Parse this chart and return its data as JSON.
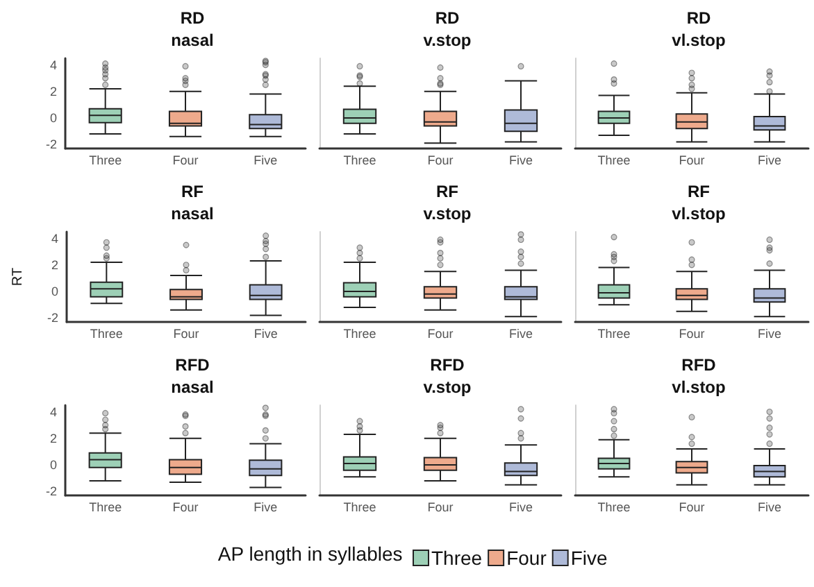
{
  "chart_data": [
    {
      "type": "box",
      "title": "RD",
      "subtitle": "nasal",
      "categories": [
        "Three",
        "Four",
        "Five"
      ],
      "ylim": [
        -2.3,
        4.5
      ],
      "yticks": [
        -2,
        0,
        2,
        4
      ],
      "grid": false,
      "legend": false,
      "series": [
        {
          "color": "#9dd0b6",
          "boxes": [
            {
              "low": -1.2,
              "q1": -0.35,
              "median": 0.2,
              "q3": 0.7,
              "high": 2.2,
              "outliers": [
                2.5,
                3.0,
                3.3,
                3.6,
                3.8,
                4.1
              ]
            },
            null,
            null
          ]
        },
        {
          "color": "#eeaa8c",
          "boxes": [
            null,
            {
              "low": -1.4,
              "q1": -0.6,
              "median": -0.4,
              "q3": 0.5,
              "high": 2.0,
              "outliers": [
                2.5,
                2.8,
                3.0,
                3.9
              ]
            },
            null
          ]
        },
        {
          "color": "#aebad8",
          "boxes": [
            null,
            null,
            {
              "low": -1.4,
              "q1": -0.8,
              "median": -0.5,
              "q3": 0.25,
              "high": 1.8,
              "outliers": [
                2.5,
                2.9,
                3.2,
                3.3,
                4.0,
                4.2,
                4.3
              ]
            }
          ]
        }
      ]
    },
    {
      "type": "box",
      "title": "RD",
      "subtitle": "v.stop",
      "categories": [
        "Three",
        "Four",
        "Five"
      ],
      "ylim": [
        -2.3,
        4.5
      ],
      "yticks": [
        -2,
        0,
        2,
        4
      ],
      "tick_labels": "x",
      "grid": false,
      "legend": false,
      "series": [
        {
          "color": "#9dd0b6",
          "boxes": [
            {
              "low": -1.2,
              "q1": -0.4,
              "median": 0.0,
              "q3": 0.65,
              "high": 2.4,
              "outliers": [
                2.6,
                3.1,
                3.2,
                3.9
              ]
            },
            null,
            null
          ]
        },
        {
          "color": "#eeaa8c",
          "boxes": [
            null,
            {
              "low": -1.9,
              "q1": -0.6,
              "median": -0.3,
              "q3": 0.5,
              "high": 2.0,
              "outliers": [
                2.5,
                2.6,
                3.0,
                3.8
              ]
            },
            null
          ]
        },
        {
          "color": "#aebad8",
          "boxes": [
            null,
            null,
            {
              "low": -1.8,
              "q1": -1.0,
              "median": -0.4,
              "q3": 0.6,
              "high": 2.8,
              "outliers": [
                3.9
              ]
            }
          ]
        }
      ]
    },
    {
      "type": "box",
      "title": "RD",
      "subtitle": "vl.stop",
      "categories": [
        "Three",
        "Four",
        "Five"
      ],
      "ylim": [
        -2.3,
        4.5
      ],
      "yticks": [
        -2,
        0,
        2,
        4
      ],
      "tick_labels": "x",
      "grid": false,
      "legend": false,
      "series": [
        {
          "color": "#9dd0b6",
          "boxes": [
            {
              "low": -1.3,
              "q1": -0.4,
              "median": 0.0,
              "q3": 0.5,
              "high": 1.7,
              "outliers": [
                2.6,
                2.9,
                4.1
              ]
            },
            null,
            null
          ]
        },
        {
          "color": "#eeaa8c",
          "boxes": [
            null,
            {
              "low": -1.8,
              "q1": -0.8,
              "median": -0.3,
              "q3": 0.3,
              "high": 1.9,
              "outliers": [
                2.2,
                2.5,
                3.0,
                3.4
              ]
            },
            null
          ]
        },
        {
          "color": "#aebad8",
          "boxes": [
            null,
            null,
            {
              "low": -1.8,
              "q1": -0.9,
              "median": -0.6,
              "q3": 0.1,
              "high": 1.8,
              "outliers": [
                2.0,
                2.7,
                3.2,
                3.5
              ]
            }
          ]
        }
      ]
    },
    {
      "type": "box",
      "title": "RF",
      "subtitle": "nasal",
      "ylabel": "RT",
      "categories": [
        "Three",
        "Four",
        "Five"
      ],
      "ylim": [
        -2.3,
        4.5
      ],
      "yticks": [
        -2,
        0,
        2,
        4
      ],
      "grid": false,
      "legend": false,
      "series": [
        {
          "color": "#9dd0b6",
          "boxes": [
            {
              "low": -0.9,
              "q1": -0.4,
              "median": 0.2,
              "q3": 0.7,
              "high": 2.2,
              "outliers": [
                2.5,
                2.7,
                3.3,
                3.7
              ]
            },
            null,
            null
          ]
        },
        {
          "color": "#eeaa8c",
          "boxes": [
            null,
            {
              "low": -1.4,
              "q1": -0.6,
              "median": -0.4,
              "q3": 0.15,
              "high": 1.2,
              "outliers": [
                1.6,
                2.0,
                3.5
              ]
            },
            null
          ]
        },
        {
          "color": "#aebad8",
          "boxes": [
            null,
            null,
            {
              "low": -1.8,
              "q1": -0.6,
              "median": -0.3,
              "q3": 0.5,
              "high": 2.3,
              "outliers": [
                2.6,
                3.2,
                3.6,
                3.8,
                4.2
              ]
            }
          ]
        }
      ]
    },
    {
      "type": "box",
      "title": "RF",
      "subtitle": "v.stop",
      "categories": [
        "Three",
        "Four",
        "Five"
      ],
      "ylim": [
        -2.3,
        4.5
      ],
      "yticks": [
        -2,
        0,
        2,
        4
      ],
      "tick_labels": "x",
      "grid": false,
      "legend": false,
      "series": [
        {
          "color": "#9dd0b6",
          "boxes": [
            {
              "low": -1.2,
              "q1": -0.4,
              "median": 0.0,
              "q3": 0.65,
              "high": 2.2,
              "outliers": [
                2.5,
                2.9,
                3.3
              ]
            },
            null,
            null
          ]
        },
        {
          "color": "#eeaa8c",
          "boxes": [
            null,
            {
              "low": -1.4,
              "q1": -0.5,
              "median": -0.2,
              "q3": 0.35,
              "high": 1.5,
              "outliers": [
                2.0,
                2.5,
                2.9,
                3.7,
                3.9
              ]
            },
            null
          ]
        },
        {
          "color": "#aebad8",
          "boxes": [
            null,
            null,
            {
              "low": -1.9,
              "q1": -0.6,
              "median": -0.4,
              "q3": 0.35,
              "high": 1.6,
              "outliers": [
                2.1,
                2.6,
                3.0,
                3.9,
                4.3
              ]
            }
          ]
        }
      ]
    },
    {
      "type": "box",
      "title": "RF",
      "subtitle": "vl.stop",
      "categories": [
        "Three",
        "Four",
        "Five"
      ],
      "ylim": [
        -2.3,
        4.5
      ],
      "yticks": [
        -2,
        0,
        2,
        4
      ],
      "tick_labels": "x",
      "grid": false,
      "legend": false,
      "series": [
        {
          "color": "#9dd0b6",
          "boxes": [
            {
              "low": -1.0,
              "q1": -0.5,
              "median": -0.1,
              "q3": 0.5,
              "high": 1.8,
              "outliers": [
                2.3,
                2.6,
                2.8,
                4.1
              ]
            },
            null,
            null
          ]
        },
        {
          "color": "#eeaa8c",
          "boxes": [
            null,
            {
              "low": -1.5,
              "q1": -0.6,
              "median": -0.3,
              "q3": 0.2,
              "high": 1.5,
              "outliers": [
                2.0,
                2.4,
                3.7
              ]
            },
            null
          ]
        },
        {
          "color": "#aebad8",
          "boxes": [
            null,
            null,
            {
              "low": -1.9,
              "q1": -0.8,
              "median": -0.5,
              "q3": 0.2,
              "high": 1.6,
              "outliers": [
                2.1,
                3.1,
                3.3,
                3.9
              ]
            }
          ]
        }
      ]
    },
    {
      "type": "box",
      "title": "RFD",
      "subtitle": "nasal",
      "categories": [
        "Three",
        "Four",
        "Five"
      ],
      "ylim": [
        -2.3,
        4.5
      ],
      "yticks": [
        -2,
        0,
        2,
        4
      ],
      "grid": false,
      "legend": false,
      "series": [
        {
          "color": "#9dd0b6",
          "boxes": [
            {
              "low": -1.2,
              "q1": -0.2,
              "median": 0.4,
              "q3": 0.9,
              "high": 2.4,
              "outliers": [
                2.7,
                3.0,
                3.4,
                3.9
              ]
            },
            null,
            null
          ]
        },
        {
          "color": "#eeaa8c",
          "boxes": [
            null,
            {
              "low": -1.3,
              "q1": -0.7,
              "median": -0.2,
              "q3": 0.4,
              "high": 2.0,
              "outliers": [
                2.4,
                2.9,
                3.7,
                3.8
              ]
            },
            null
          ]
        },
        {
          "color": "#aebad8",
          "boxes": [
            null,
            null,
            {
              "low": -1.7,
              "q1": -0.8,
              "median": -0.3,
              "q3": 0.35,
              "high": 1.6,
              "outliers": [
                2.0,
                2.6,
                3.7,
                3.8,
                4.3
              ]
            }
          ]
        }
      ]
    },
    {
      "type": "box",
      "title": "RFD",
      "subtitle": "v.stop",
      "categories": [
        "Three",
        "Four",
        "Five"
      ],
      "ylim": [
        -2.3,
        4.5
      ],
      "yticks": [
        -2,
        0,
        2,
        4
      ],
      "tick_labels": "x",
      "grid": false,
      "legend": false,
      "series": [
        {
          "color": "#9dd0b6",
          "boxes": [
            {
              "low": -0.9,
              "q1": -0.4,
              "median": 0.1,
              "q3": 0.6,
              "high": 2.3,
              "outliers": [
                2.6,
                2.9,
                3.3
              ]
            },
            null,
            null
          ]
        },
        {
          "color": "#eeaa8c",
          "boxes": [
            null,
            {
              "low": -1.2,
              "q1": -0.4,
              "median": 0.0,
              "q3": 0.55,
              "high": 2.0,
              "outliers": [
                2.4,
                2.8,
                3.0
              ]
            },
            null
          ]
        },
        {
          "color": "#aebad8",
          "boxes": [
            null,
            null,
            {
              "low": -1.5,
              "q1": -0.8,
              "median": -0.5,
              "q3": 0.15,
              "high": 1.5,
              "outliers": [
                2.0,
                2.4,
                3.5,
                4.2
              ]
            }
          ]
        }
      ]
    },
    {
      "type": "box",
      "title": "RFD",
      "subtitle": "vl.stop",
      "categories": [
        "Three",
        "Four",
        "Five"
      ],
      "ylim": [
        -2.3,
        4.5
      ],
      "yticks": [
        -2,
        0,
        2,
        4
      ],
      "tick_labels": "x",
      "grid": false,
      "legend": "bottom",
      "legend_title": "AP length in syllables",
      "series": [
        {
          "name": "Three",
          "color": "#9dd0b6",
          "boxes": [
            {
              "low": -0.9,
              "q1": -0.3,
              "median": 0.1,
              "q3": 0.5,
              "high": 1.9,
              "outliers": [
                2.2,
                2.7,
                3.3,
                3.9,
                4.2
              ]
            },
            null,
            null
          ]
        },
        {
          "name": "Four",
          "color": "#eeaa8c",
          "boxes": [
            null,
            {
              "low": -1.5,
              "q1": -0.6,
              "median": -0.2,
              "q3": 0.25,
              "high": 1.2,
              "outliers": [
                1.6,
                2.1,
                3.6
              ]
            },
            null
          ]
        },
        {
          "name": "Five",
          "color": "#aebad8",
          "boxes": [
            null,
            null,
            {
              "low": -1.5,
              "q1": -0.9,
              "median": -0.5,
              "q3": -0.05,
              "high": 1.2,
              "outliers": [
                1.6,
                2.3,
                2.8,
                3.5,
                4.0
              ]
            }
          ]
        }
      ]
    }
  ]
}
